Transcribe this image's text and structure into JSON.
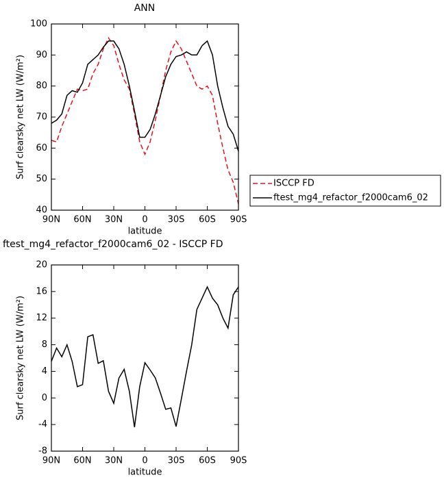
{
  "chart_data": [
    {
      "type": "line",
      "title": "ANN",
      "x_label": "latitude",
      "y_label": "Surf clearsky net LW (W/m²)",
      "x": [
        90,
        85,
        80,
        75,
        70,
        65,
        60,
        55,
        50,
        45,
        40,
        35,
        30,
        25,
        20,
        15,
        10,
        5,
        0,
        -5,
        -10,
        -15,
        -20,
        -25,
        -30,
        -35,
        -40,
        -45,
        -50,
        -55,
        -60,
        -65,
        -70,
        -75,
        -80,
        -85,
        -90
      ],
      "series": [
        {
          "name": "ISCCP FD",
          "color": "#e8101a",
          "dashed": true,
          "values": [
            62.5,
            62,
            67,
            71,
            75,
            79,
            78.5,
            79,
            84,
            87,
            92,
            95.5,
            93,
            87,
            82,
            79,
            71,
            62,
            58,
            62,
            69,
            77,
            85,
            91,
            94.5,
            92,
            88,
            84,
            80,
            79,
            80,
            77,
            68,
            60,
            53,
            49,
            42
          ]
        },
        {
          "name": "ftest_mg4_refactor_f2000cam6_02",
          "color": "#000000",
          "dashed": false,
          "values": [
            68,
            69,
            71,
            77,
            78.5,
            78,
            81,
            87,
            88.5,
            90,
            92.5,
            94.5,
            94.5,
            92,
            87,
            80,
            72,
            63.5,
            63.5,
            66,
            71,
            77,
            83,
            87,
            89.5,
            90,
            91,
            90,
            90,
            93,
            94.5,
            90,
            80,
            73,
            67,
            64.5,
            59
          ]
        }
      ],
      "xlim": [
        90,
        -90
      ],
      "xticks": [
        {
          "value": 90,
          "label": "90N"
        },
        {
          "value": 60,
          "label": "60N"
        },
        {
          "value": 30,
          "label": "30N"
        },
        0,
        {
          "value": -30,
          "label": "30S"
        },
        {
          "value": -60,
          "label": "60S"
        },
        {
          "value": -90,
          "label": "90S"
        }
      ],
      "ylim": [
        40,
        100
      ],
      "yticks": [
        40,
        50,
        60,
        70,
        80,
        90,
        100
      ],
      "legend_position": "right"
    },
    {
      "type": "line",
      "title": "ftest_mg4_refactor_f2000cam6_02 - ISCCP FD",
      "x_label": "latitude",
      "y_label": "Surf clearsky net LW (W/m²)",
      "x": [
        90,
        85,
        80,
        75,
        70,
        65,
        60,
        55,
        50,
        45,
        40,
        35,
        30,
        25,
        20,
        15,
        10,
        5,
        0,
        -5,
        -10,
        -15,
        -20,
        -25,
        -30,
        -35,
        -40,
        -45,
        -50,
        -55,
        -60,
        -65,
        -70,
        -75,
        -80,
        -85,
        -90
      ],
      "color": "#000000",
      "values": [
        5.5,
        7.5,
        6.2,
        8,
        5.5,
        1.7,
        2,
        9.2,
        9.5,
        5.2,
        5.6,
        1,
        -0.8,
        3,
        4.3,
        1,
        -4.4,
        1.7,
        5.3,
        4.2,
        3,
        0.7,
        -1.7,
        -1.5,
        -4.3,
        -0.2,
        4,
        8,
        13.3,
        15,
        16.7,
        15,
        14,
        12,
        10.5,
        15.5,
        16.7
      ],
      "xlim": [
        90,
        -90
      ],
      "xticks": [
        {
          "value": 90,
          "label": "90N"
        },
        {
          "value": 60,
          "label": "60N"
        },
        {
          "value": 30,
          "label": "30N"
        },
        0,
        {
          "value": -30,
          "label": "30S"
        },
        {
          "value": -60,
          "label": "60S"
        },
        {
          "value": -90,
          "label": "90S"
        }
      ],
      "ylim": [
        -8,
        20
      ],
      "yticks": [
        -8,
        -4,
        0,
        4,
        8,
        12,
        16,
        20
      ]
    }
  ]
}
